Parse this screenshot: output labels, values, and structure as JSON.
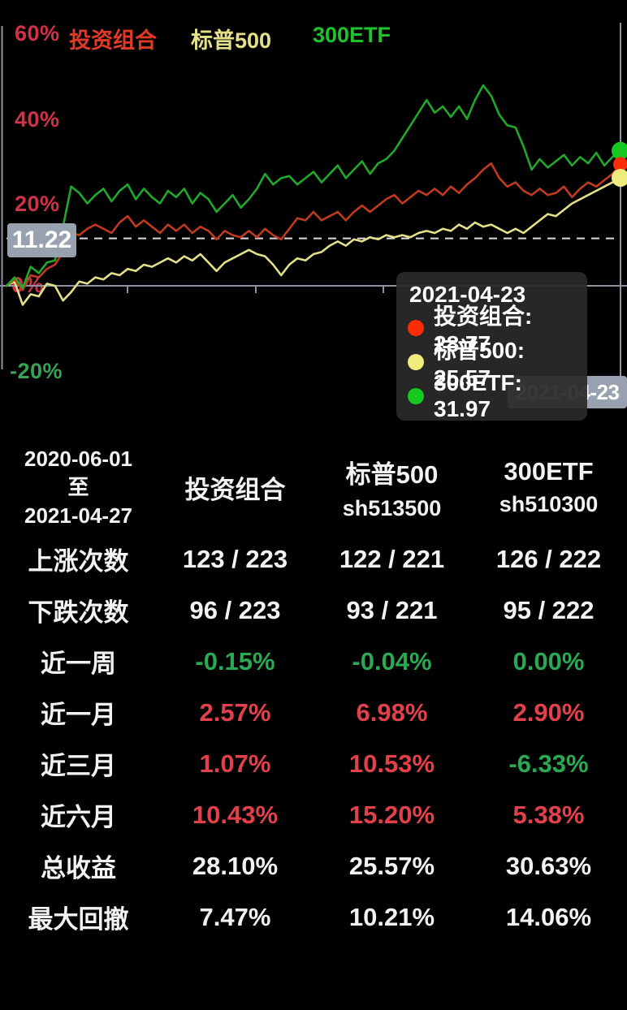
{
  "colors": {
    "background": "#000000",
    "axis": "#8d93a1",
    "axis_label_red": "#d03349",
    "axis_label_green": "#36a355",
    "badge_bg": "#98a1af",
    "reference_dash": "#dcdcdc",
    "table_red": "#e2414c",
    "table_green": "#2aa854",
    "table_white": "#f2f2f2"
  },
  "chart": {
    "legend": [
      {
        "label": "投资组合",
        "color": "#de3a28"
      },
      {
        "label": "标普500",
        "color": "#e4e089"
      },
      {
        "label": "300ETF",
        "color": "#1fc32c"
      }
    ],
    "y_axis": {
      "labels": [
        "60%",
        "40%",
        "20%",
        "0%",
        "-20%"
      ],
      "label_colors": [
        "#d03349",
        "#d03349",
        "#d03349",
        "#d03349",
        "#36a355"
      ]
    },
    "reference_line": {
      "label": "11.22",
      "value": 11.22
    },
    "cursor_date_badge": "2021-04-23",
    "tooltip": {
      "date": "2021-04-23",
      "items": [
        {
          "label": "投资组合",
          "value": "28.77",
          "dot_color": "#fd2b06"
        },
        {
          "label": "标普500",
          "value": "25.57",
          "dot_color": "#efec7d"
        },
        {
          "label": "300ETF",
          "value": "31.97",
          "dot_color": "#17c81f"
        }
      ]
    }
  },
  "chart_data": {
    "type": "line",
    "title": "",
    "x_range": {
      "start": "2020-06-01",
      "end": "2021-04-27"
    },
    "y_ticks": [
      "60%",
      "40%",
      "20%",
      "0%",
      "-20%"
    ],
    "ylim": [
      -25,
      62
    ],
    "grid": false,
    "legend_position": "top",
    "reference_value": 11.22,
    "cursor": {
      "date": "2021-04-23",
      "投资组合": 28.77,
      "标普500": 25.57,
      "300ETF": 31.97
    },
    "series": [
      {
        "name": "投资组合",
        "color": "#bf3a20",
        "dot_color": "#fd2b06",
        "unit": "%",
        "values": [
          0,
          1.5,
          -1,
          2.5,
          2,
          4,
          5,
          8,
          12.5,
          12,
          13.5,
          14.5,
          13.5,
          12.5,
          15,
          16.5,
          14,
          15.5,
          14,
          12.5,
          14.5,
          13,
          14.5,
          12.5,
          14,
          13,
          11,
          13,
          12,
          11.5,
          13,
          11.5,
          13.5,
          12,
          11,
          13.5,
          16,
          15.5,
          17.5,
          15.5,
          16.5,
          17.5,
          15.5,
          17.5,
          19,
          17.5,
          19,
          20.5,
          21.5,
          19.5,
          21,
          22.5,
          21.5,
          23,
          21.5,
          23.5,
          22,
          24,
          25.5,
          27.5,
          29,
          25.5,
          23.5,
          24.5,
          22.5,
          21.5,
          23,
          21.5,
          22,
          23.5,
          21,
          23,
          24.5,
          23.5,
          25,
          26.5,
          28.77
        ]
      },
      {
        "name": "标普500",
        "color": "#e4e089",
        "dot_color": "#efec7d",
        "unit": "%",
        "values": [
          0,
          1,
          -4.5,
          -2,
          -2.5,
          0.5,
          0,
          -3.5,
          -1.5,
          1,
          0.5,
          2,
          1.5,
          3,
          2.5,
          4,
          3.5,
          5,
          4.5,
          5.5,
          6.5,
          5.5,
          7,
          6,
          7.5,
          5.5,
          3.5,
          5.5,
          6.5,
          7.5,
          8.5,
          7.5,
          7,
          5,
          2.5,
          5,
          6.5,
          6,
          7.5,
          8,
          9.5,
          10.5,
          9.5,
          11,
          10.5,
          11.5,
          11,
          12,
          11.5,
          12,
          11.5,
          12.5,
          13,
          12.5,
          13.5,
          13,
          14.5,
          13.5,
          15,
          14,
          14.5,
          13.5,
          12.5,
          13.5,
          12.5,
          14,
          15.5,
          17,
          16.5,
          18,
          19.5,
          20.5,
          21.5,
          22.5,
          23.5,
          24.5,
          25.57
        ]
      },
      {
        "name": "300ETF",
        "color": "#21a82c",
        "dot_color": "#17c81f",
        "unit": "%",
        "values": [
          0,
          2,
          -0.5,
          4.5,
          3,
          5.5,
          6,
          14,
          23.5,
          22,
          19.5,
          21.5,
          23,
          20,
          22.5,
          24,
          20.5,
          23,
          21,
          19.5,
          22.5,
          21,
          23,
          19.5,
          22,
          20.5,
          17.5,
          19.5,
          21.5,
          18.5,
          20.5,
          23,
          26.5,
          24,
          25.5,
          26,
          24,
          25.5,
          27,
          24.5,
          26.5,
          28.5,
          25.5,
          27.5,
          29.5,
          26.5,
          29,
          30,
          32,
          35,
          38,
          41,
          44,
          41,
          42.5,
          40,
          42.5,
          39.5,
          44,
          47.5,
          45,
          40.5,
          38,
          37.5,
          33,
          27.5,
          30,
          28,
          29.5,
          31,
          28.5,
          30.5,
          29,
          31.5,
          28.5,
          30.5,
          31.97
        ]
      }
    ]
  },
  "table": {
    "period": [
      "2020-06-01",
      "至",
      "2021-04-27"
    ],
    "columns": [
      {
        "title": "投资组合",
        "code": ""
      },
      {
        "title": "标普500",
        "code": "sh513500"
      },
      {
        "title": "300ETF",
        "code": "sh510300"
      }
    ],
    "rows": [
      {
        "label": "上涨次数",
        "values": [
          "123 / 223",
          "122 / 221",
          "126 / 222"
        ],
        "colors": [
          "white",
          "white",
          "white"
        ]
      },
      {
        "label": "下跌次数",
        "values": [
          "96 / 223",
          "93 / 221",
          "95 / 222"
        ],
        "colors": [
          "white",
          "white",
          "white"
        ]
      },
      {
        "label": "近一周",
        "values": [
          "-0.15%",
          "-0.04%",
          "0.00%"
        ],
        "colors": [
          "green",
          "green",
          "green"
        ]
      },
      {
        "label": "近一月",
        "values": [
          "2.57%",
          "6.98%",
          "2.90%"
        ],
        "colors": [
          "red",
          "red",
          "red"
        ]
      },
      {
        "label": "近三月",
        "values": [
          "1.07%",
          "10.53%",
          "-6.33%"
        ],
        "colors": [
          "red",
          "red",
          "green"
        ]
      },
      {
        "label": "近六月",
        "values": [
          "10.43%",
          "15.20%",
          "5.38%"
        ],
        "colors": [
          "red",
          "red",
          "red"
        ]
      },
      {
        "label": "总收益",
        "values": [
          "28.10%",
          "25.57%",
          "30.63%"
        ],
        "colors": [
          "white",
          "white",
          "white"
        ]
      },
      {
        "label": "最大回撤",
        "values": [
          "7.47%",
          "10.21%",
          "14.06%"
        ],
        "colors": [
          "white",
          "white",
          "white"
        ]
      }
    ]
  }
}
